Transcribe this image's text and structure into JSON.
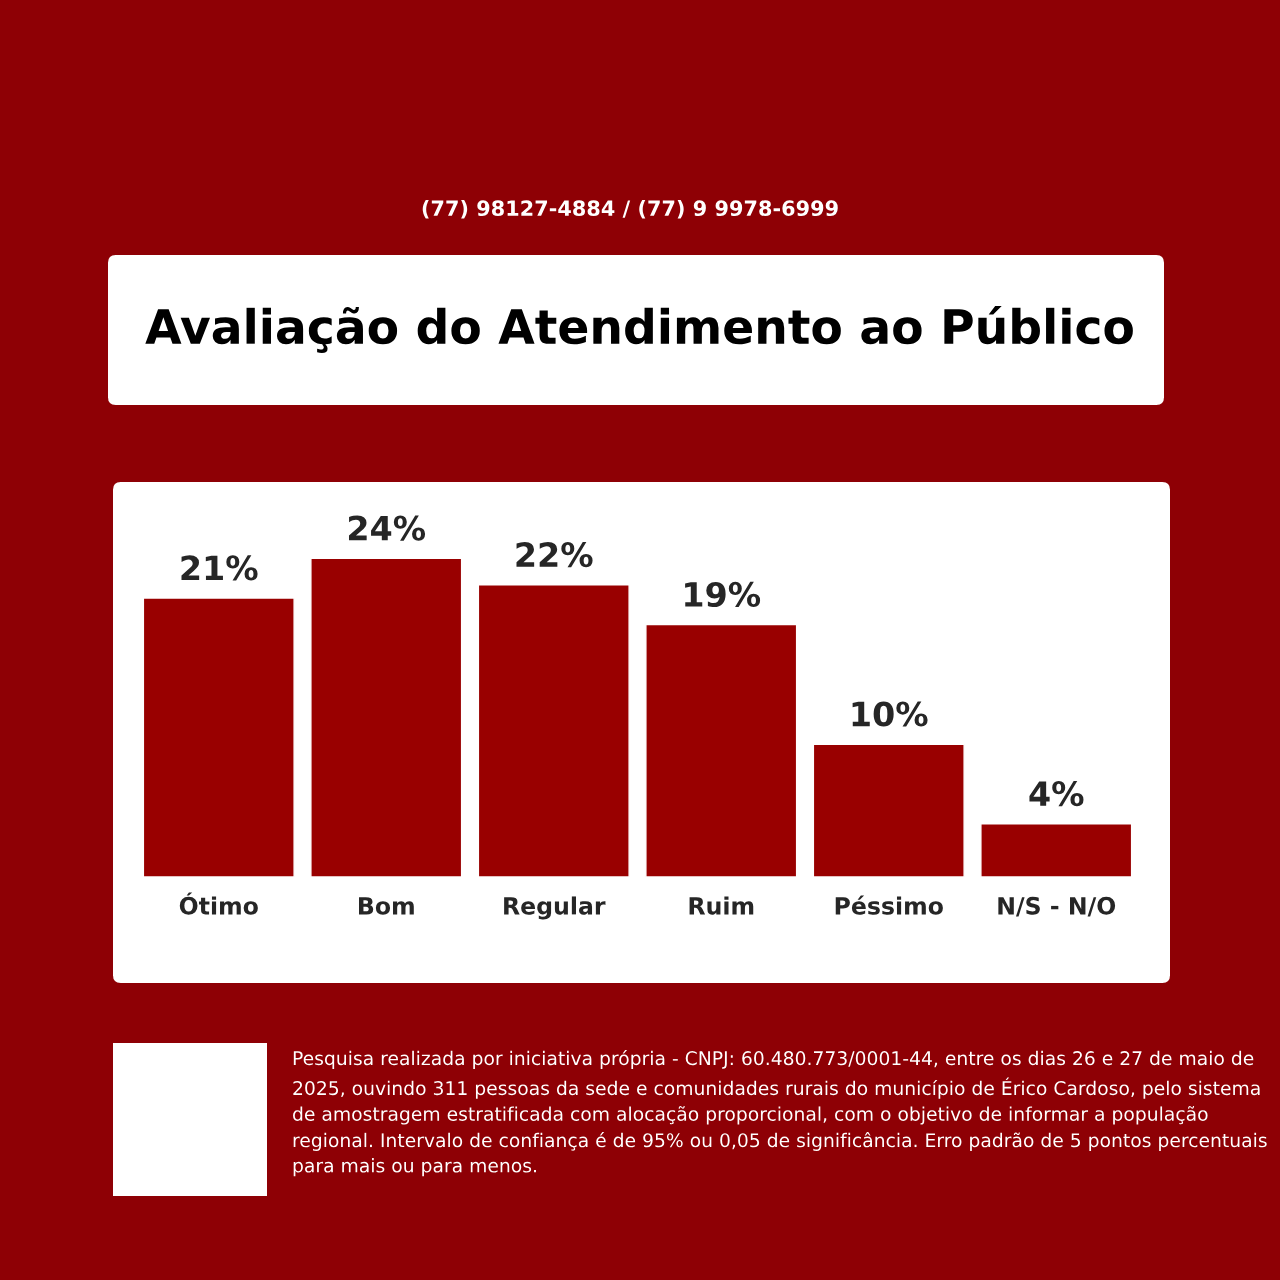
{
  "chart_data": {
    "type": "bar",
    "title": "Avaliação do Atendimento ao Público",
    "categories": [
      "Ótimo",
      "Bom",
      "Regular",
      "Ruim",
      "Péssimo",
      "N/S - N/O"
    ],
    "values": [
      21,
      24,
      22,
      19,
      10,
      4
    ],
    "color": "#990000",
    "value_labels": [
      "21%",
      "24%",
      "22%",
      "19%",
      "10%",
      "4%"
    ],
    "annotations": [
      "(77) 98127-4884 / (77) 9 9978-6999",
      "Pesquisa realizada por iniciativa própria - CNPJ: 60.480.773/0001-44, entre os dias 26 e 27 de maio de 2025, ouvindo 311 pessoas da sede e comunidades rurais do município de Érico Cardoso, pelo sistema de amostragem estratificada com alocação proporcional, com o objetivo de informar a população regional. Intervalo de confiança é de 95% ou 0,05 de significância. Erro padrão de 5 pontos percentuais para mais ou para menos."
    ]
  }
}
